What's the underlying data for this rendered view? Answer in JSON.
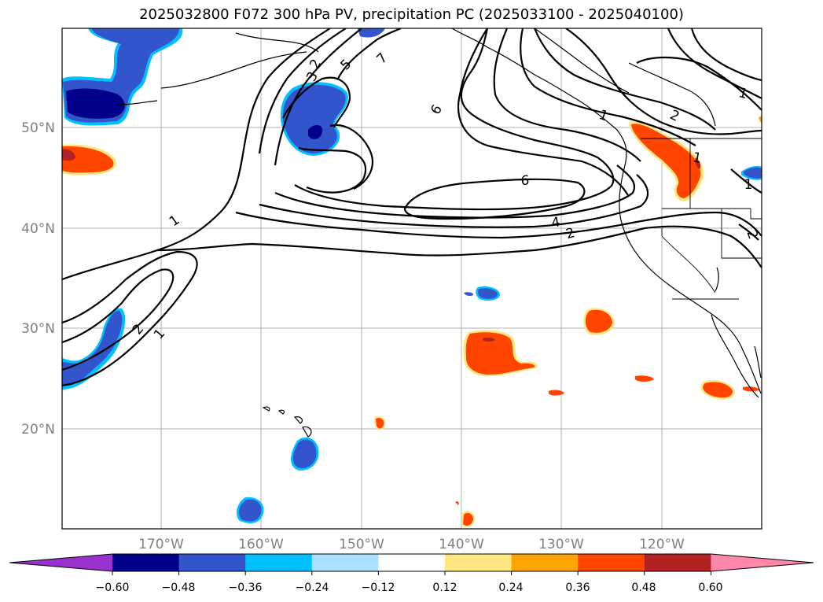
{
  "title": "2025032800 F072 300 hPa PV, precipitation PC (2025033100 - 2025040100)",
  "lat_labels": [
    "50°N",
    "40°N",
    "30°N",
    "20°N"
  ],
  "lon_labels": [
    "170°W",
    "160°W",
    "150°W",
    "140°W",
    "130°W",
    "120°W"
  ],
  "contour_labels": [
    "1",
    "1",
    "1",
    "1",
    "1",
    "1",
    "2",
    "2",
    "2",
    "2",
    "2",
    "3",
    "4",
    "5",
    "6",
    "6",
    "7"
  ],
  "colorbar": {
    "ticks": [
      "−0.60",
      "−0.48",
      "−0.36",
      "−0.24",
      "−0.12",
      "0.12",
      "0.24",
      "0.36",
      "0.48",
      "0.60"
    ],
    "colors": [
      "#9932cc",
      "#00008b",
      "#3355cc",
      "#00bfff",
      "#aadfff",
      "#ffffff",
      "#ffe680",
      "#ffa500",
      "#ff4500",
      "#b22222",
      "#ff88aa"
    ]
  }
}
